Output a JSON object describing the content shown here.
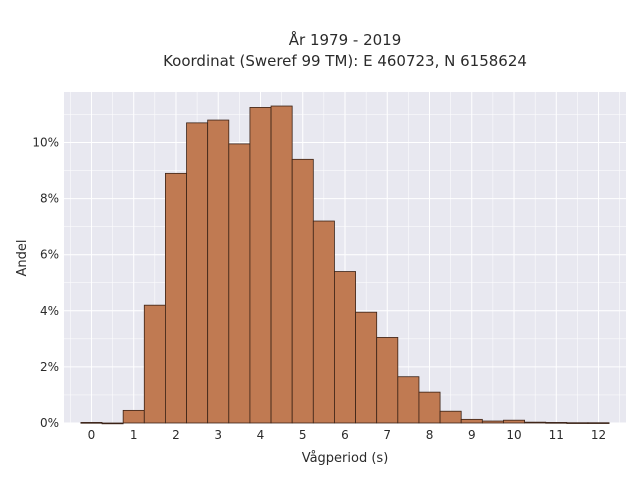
{
  "chart_data": {
    "type": "bar",
    "title": "År 1979 - 2019",
    "subtitle": "Koordinat (Sweref 99 TM): E 460723, N 6158624",
    "xlabel": "Vågperiod (s)",
    "ylabel": "Andel",
    "xlim": [
      -0.65,
      12.65
    ],
    "ylim": [
      0,
      11.8
    ],
    "xticks": [
      0,
      1,
      2,
      3,
      4,
      5,
      6,
      7,
      8,
      9,
      10,
      11,
      12
    ],
    "yticks": [
      0,
      2,
      4,
      6,
      8,
      10
    ],
    "ytick_suffix": "%",
    "bin_width": 0.5,
    "bins": [
      {
        "start": -0.25,
        "value": 0.02
      },
      {
        "start": 0.25,
        "value": 0.0
      },
      {
        "start": 0.75,
        "value": 0.45
      },
      {
        "start": 1.25,
        "value": 4.2
      },
      {
        "start": 1.75,
        "value": 8.9
      },
      {
        "start": 2.25,
        "value": 10.7
      },
      {
        "start": 2.75,
        "value": 10.8
      },
      {
        "start": 3.25,
        "value": 9.95
      },
      {
        "start": 3.75,
        "value": 11.25
      },
      {
        "start": 4.25,
        "value": 11.3
      },
      {
        "start": 4.75,
        "value": 9.4
      },
      {
        "start": 5.25,
        "value": 7.2
      },
      {
        "start": 5.75,
        "value": 5.4
      },
      {
        "start": 6.25,
        "value": 3.95
      },
      {
        "start": 6.75,
        "value": 3.05
      },
      {
        "start": 7.25,
        "value": 1.65
      },
      {
        "start": 7.75,
        "value": 1.1
      },
      {
        "start": 8.25,
        "value": 0.42
      },
      {
        "start": 8.75,
        "value": 0.13
      },
      {
        "start": 9.25,
        "value": 0.07
      },
      {
        "start": 9.75,
        "value": 0.1
      },
      {
        "start": 10.25,
        "value": 0.03
      },
      {
        "start": 10.75,
        "value": 0.02
      },
      {
        "start": 11.25,
        "value": 0.01
      },
      {
        "start": 11.75,
        "value": 0.01
      }
    ],
    "grid": true,
    "legend": "none",
    "colors": {
      "bar_fill": "#c07a52",
      "bar_stroke": "#3a2216",
      "plot_bg": "#e8e8f0",
      "grid": "#ffffff"
    }
  }
}
